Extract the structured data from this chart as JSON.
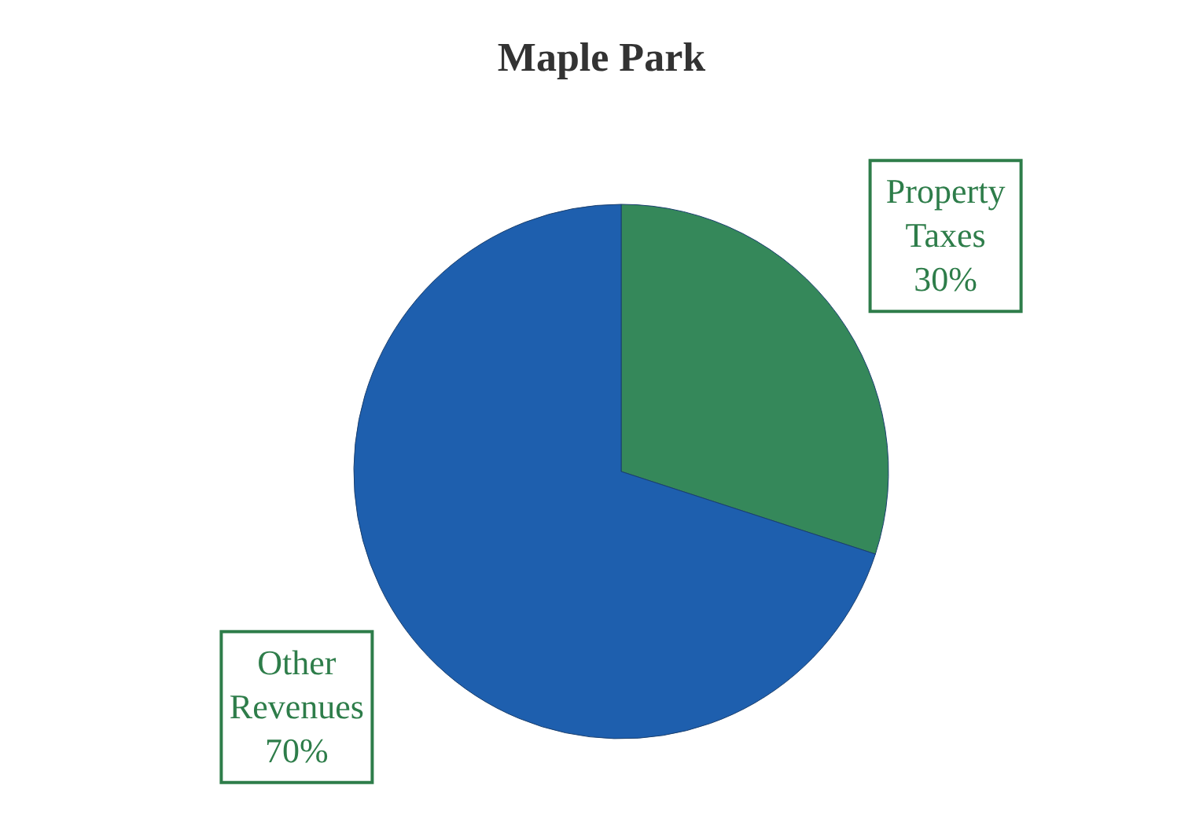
{
  "chart_data": {
    "type": "pie",
    "title": "Maple Park",
    "categories": [
      "Property Taxes",
      "Other Revenues"
    ],
    "values": [
      30,
      70
    ],
    "value_labels": [
      "30%",
      "70%"
    ],
    "colors": [
      "#35885a",
      "#1e5fae"
    ]
  }
}
